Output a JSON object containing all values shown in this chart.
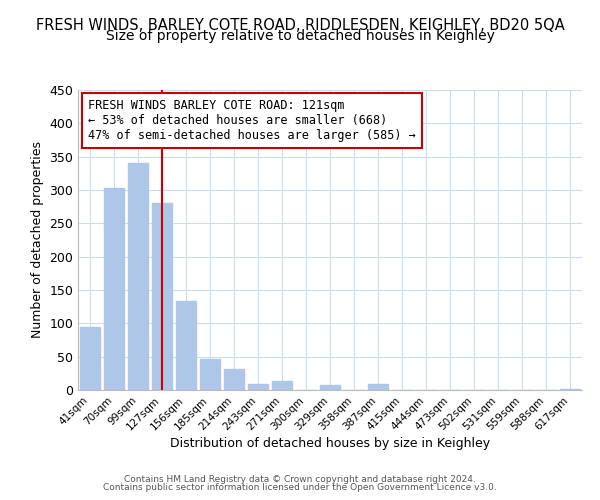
{
  "title": "FRESH WINDS, BARLEY COTE ROAD, RIDDLESDEN, KEIGHLEY, BD20 5QA",
  "subtitle": "Size of property relative to detached houses in Keighley",
  "xlabel": "Distribution of detached houses by size in Keighley",
  "ylabel": "Number of detached properties",
  "bar_labels": [
    "41sqm",
    "70sqm",
    "99sqm",
    "127sqm",
    "156sqm",
    "185sqm",
    "214sqm",
    "243sqm",
    "271sqm",
    "300sqm",
    "329sqm",
    "358sqm",
    "387sqm",
    "415sqm",
    "444sqm",
    "473sqm",
    "502sqm",
    "531sqm",
    "559sqm",
    "588sqm",
    "617sqm"
  ],
  "bar_values": [
    95,
    303,
    340,
    280,
    133,
    47,
    31,
    9,
    14,
    0,
    7,
    0,
    9,
    0,
    0,
    0,
    0,
    0,
    0,
    0,
    2
  ],
  "bar_color": "#aec6e8",
  "vline_x": 3,
  "vline_color": "#cc0000",
  "ylim": [
    0,
    450
  ],
  "yticks": [
    0,
    50,
    100,
    150,
    200,
    250,
    300,
    350,
    400,
    450
  ],
  "annotation_title": "FRESH WINDS BARLEY COTE ROAD: 121sqm",
  "annotation_line1": "← 53% of detached houses are smaller (668)",
  "annotation_line2": "47% of semi-detached houses are larger (585) →",
  "footer1": "Contains HM Land Registry data © Crown copyright and database right 2024.",
  "footer2": "Contains public sector information licensed under the Open Government Licence v3.0.",
  "background_color": "#ffffff",
  "grid_color": "#ccddee",
  "title_fontsize": 10.5,
  "subtitle_fontsize": 10
}
